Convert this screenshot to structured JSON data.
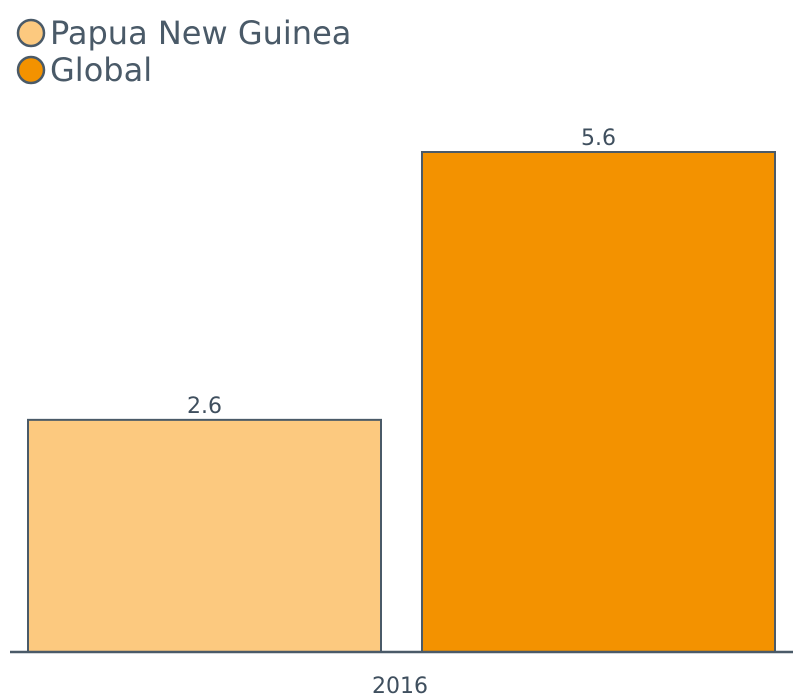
{
  "chart_data": {
    "type": "bar",
    "categories": [
      "2016"
    ],
    "series": [
      {
        "name": "Papua New Guinea",
        "values": [
          2.6
        ],
        "color": "#fcc97f"
      },
      {
        "name": "Global",
        "values": [
          5.6
        ],
        "color": "#f39200"
      }
    ],
    "title": "",
    "xlabel": "",
    "ylabel": "",
    "ylim": [
      0,
      5.6
    ],
    "grid": false,
    "legend_position": "top-left",
    "data_labels": [
      "2.6",
      "5.6"
    ]
  },
  "colors": {
    "text": "#4a5a68",
    "outline": "#4a5a68",
    "axis": "#4a5a68"
  }
}
